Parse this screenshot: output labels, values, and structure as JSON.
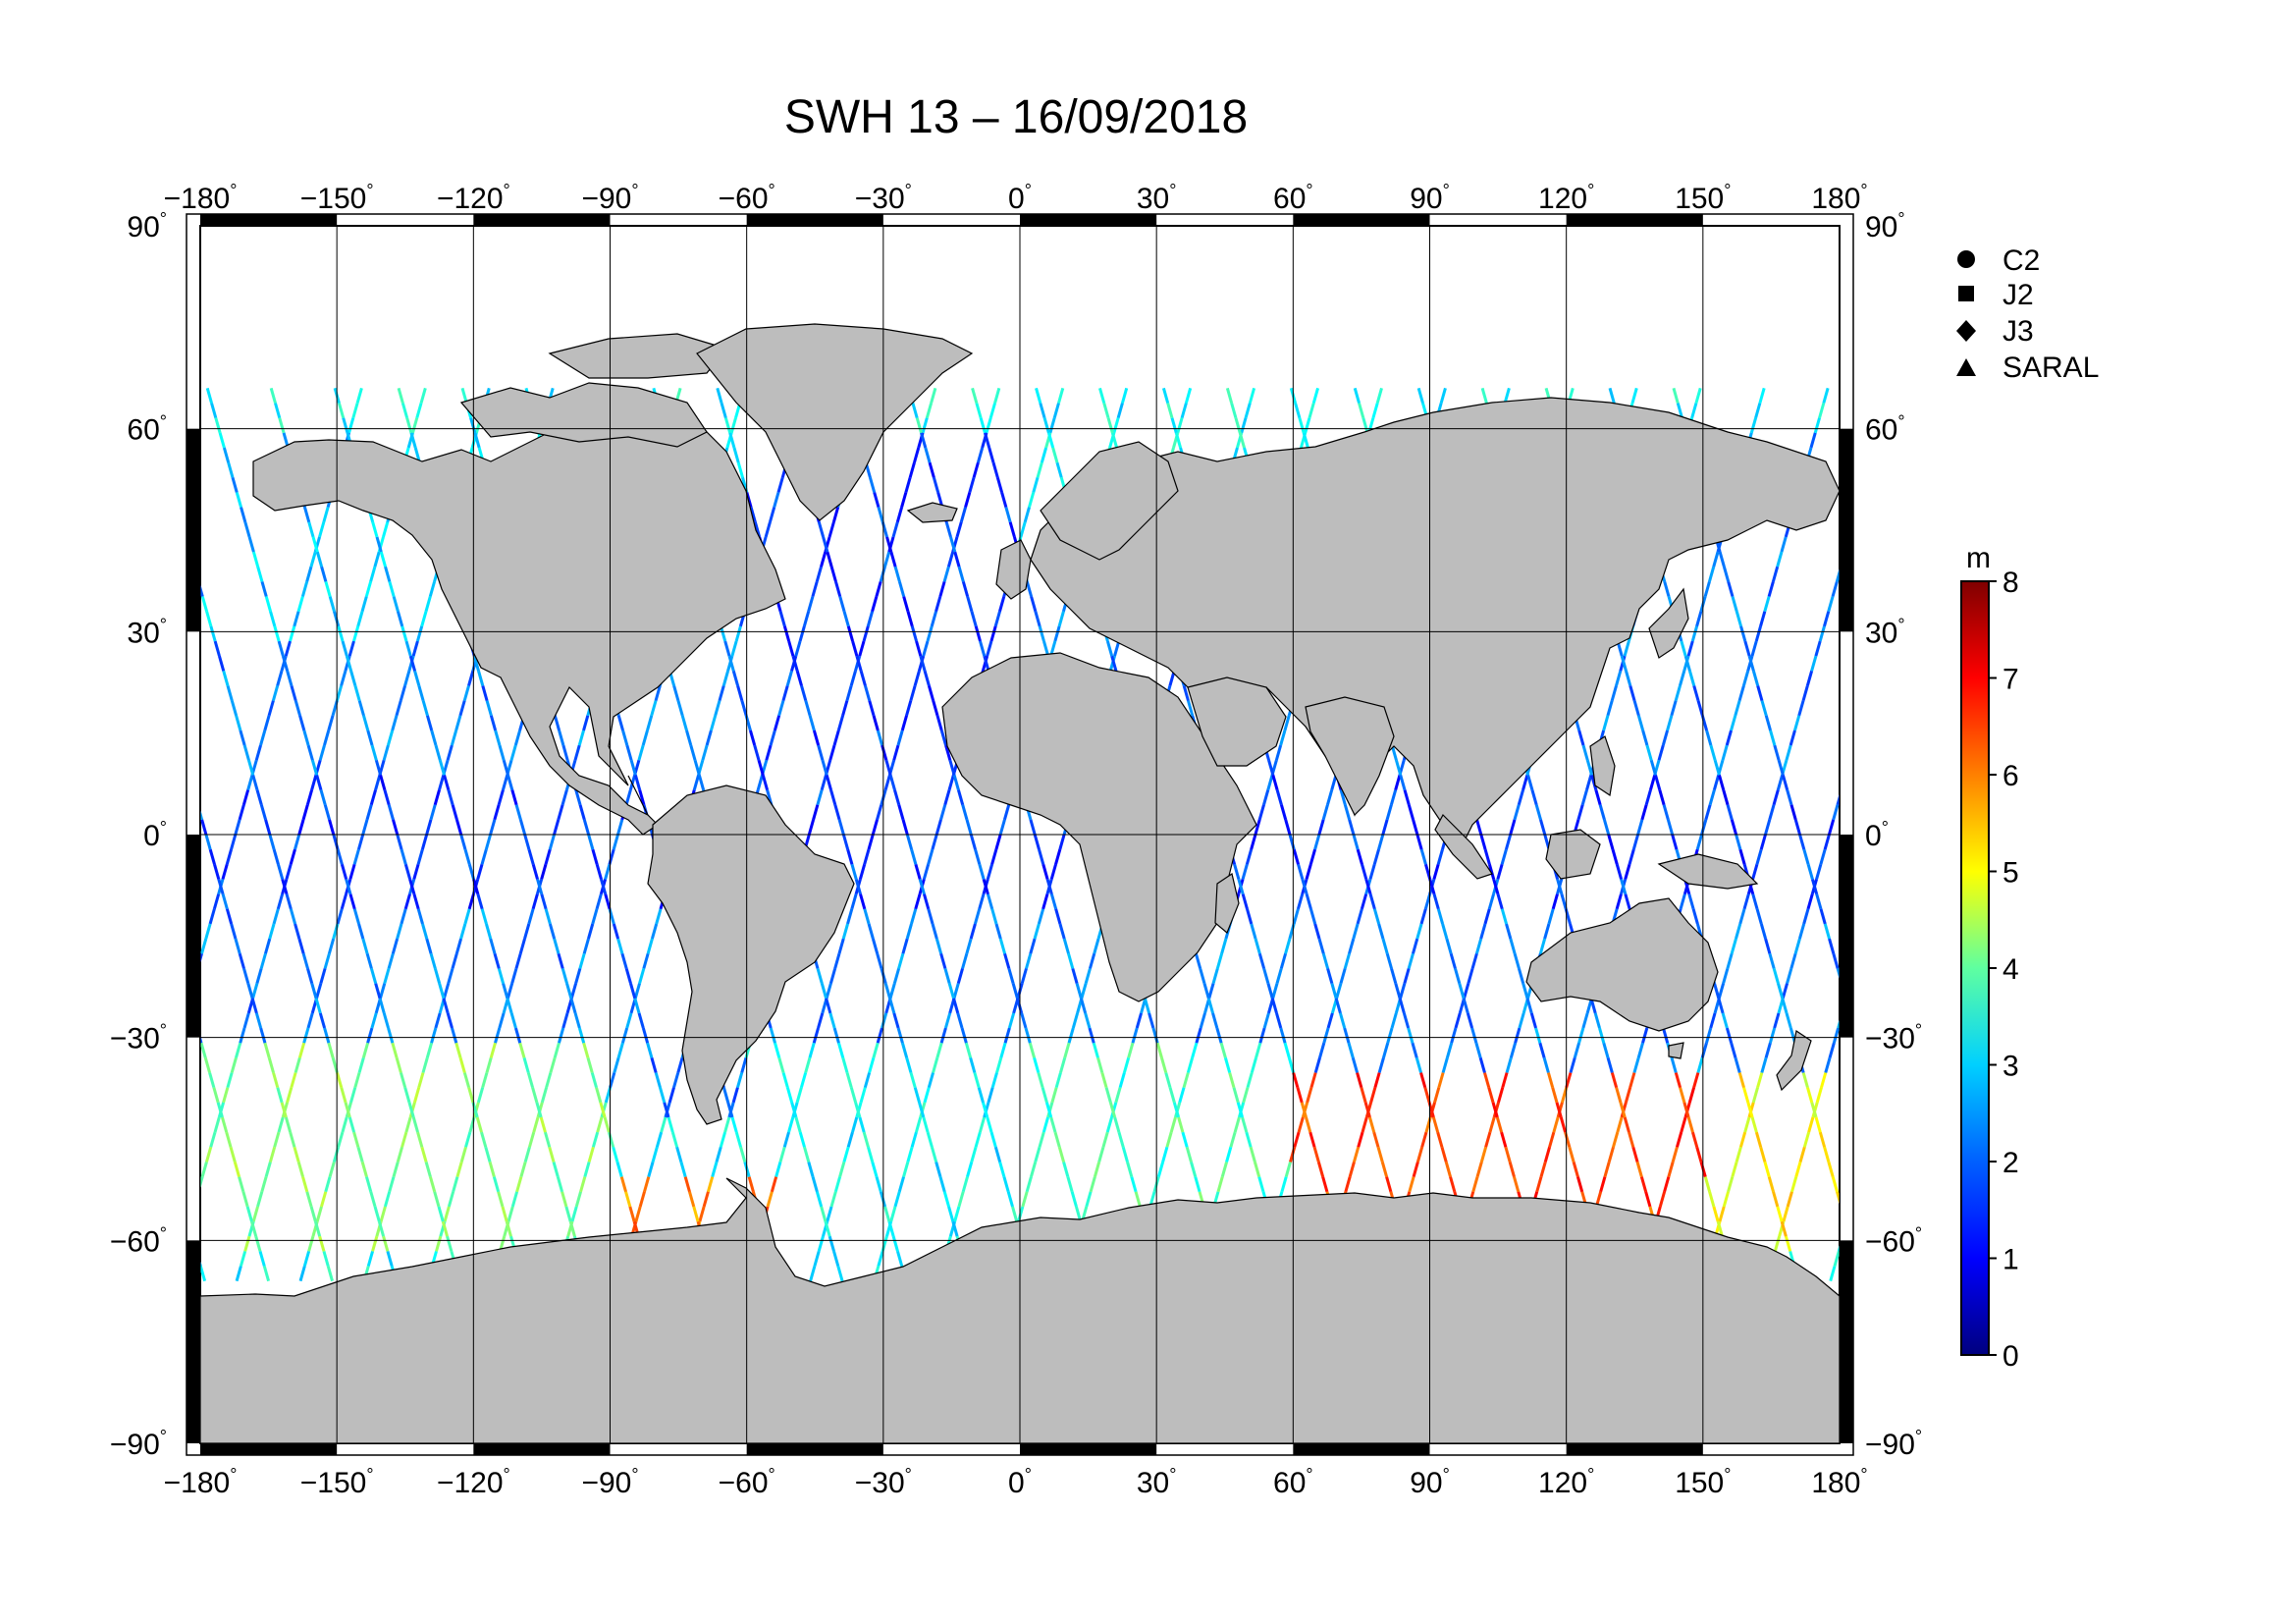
{
  "title": "SWH 13 – 16/09/2018",
  "map": {
    "lon_ticks": [
      "−180",
      "−150",
      "−120",
      "−90",
      "−60",
      "−30",
      "0",
      "30",
      "60",
      "90",
      "120",
      "150",
      "180"
    ],
    "lat_ticks_left": [
      "90",
      "60",
      "30",
      "0",
      "−30",
      "−60",
      "−90"
    ],
    "lat_ticks_right": [
      "90",
      "60",
      "30",
      "0",
      "−30",
      "−60",
      "−90"
    ],
    "lon_values": [
      -180,
      -150,
      -120,
      -90,
      -60,
      -30,
      0,
      30,
      60,
      90,
      120,
      150,
      180
    ],
    "lat_values": [
      90,
      60,
      30,
      0,
      -30,
      -60,
      -90
    ],
    "degree_symbol": "°",
    "land_color": "#bdbdbd"
  },
  "legend": {
    "items": [
      {
        "label": "C2",
        "marker": "circle"
      },
      {
        "label": "J2",
        "marker": "square"
      },
      {
        "label": "J3",
        "marker": "diamond"
      },
      {
        "label": "SARAL",
        "marker": "triangle"
      }
    ]
  },
  "colorbar": {
    "unit": "m",
    "ticks": [
      "8",
      "7",
      "6",
      "5",
      "4",
      "3",
      "2",
      "1",
      "0"
    ],
    "min": 0,
    "max": 8,
    "colors": [
      "#00007f",
      "#0000ff",
      "#007fff",
      "#00ffff",
      "#7fff7f",
      "#ffff00",
      "#ff7f00",
      "#ff0000",
      "#7f0000"
    ]
  },
  "chart_data": {
    "type": "scatter",
    "title": "SWH 13 – 16/09/2018",
    "xlim": [
      -180,
      180
    ],
    "ylim": [
      -90,
      90
    ],
    "variable": "SWH",
    "unit": "m",
    "value_range": [
      0,
      8
    ],
    "regions": [
      {
        "lon": [
          -180,
          -120
        ],
        "lat": [
          30,
          60
        ],
        "value": 2.5
      },
      {
        "lon": [
          -180,
          -90
        ],
        "lat": [
          -60,
          -30
        ],
        "value": 4.0
      },
      {
        "lon": [
          -90,
          -50
        ],
        "lat": [
          -65,
          -50
        ],
        "value": 6.0
      },
      {
        "lon": [
          -60,
          0
        ],
        "lat": [
          -60,
          -30
        ],
        "value": 3.0
      },
      {
        "lon": [
          -60,
          0
        ],
        "lat": [
          0,
          60
        ],
        "value": 1.5
      },
      {
        "lon": [
          0,
          60
        ],
        "lat": [
          -60,
          -30
        ],
        "value": 3.5
      },
      {
        "lon": [
          60,
          150
        ],
        "lat": [
          -60,
          -35
        ],
        "value": 6.5
      },
      {
        "lon": [
          150,
          180
        ],
        "lat": [
          -60,
          -35
        ],
        "value": 5.0
      },
      {
        "lon": [
          120,
          180
        ],
        "lat": [
          20,
          60
        ],
        "value": 2.0
      },
      {
        "lon": [
          -180,
          180
        ],
        "lat": [
          -10,
          10
        ],
        "value": 1.5
      }
    ]
  }
}
